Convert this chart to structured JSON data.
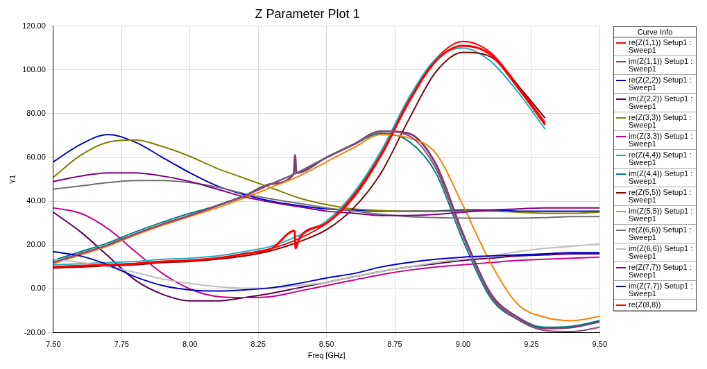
{
  "chart_data": {
    "type": "line",
    "title": "Z Parameter Plot 1",
    "xlabel": "Freq [GHz]",
    "ylabel": "Y1",
    "legend_title": "Curve Info",
    "legend": "right",
    "grid": true,
    "marker": "none",
    "line_style": "solid",
    "x": [
      7.5,
      7.6,
      7.7,
      7.8,
      7.9,
      8.0,
      8.1,
      8.2,
      8.3,
      8.4,
      8.5,
      8.6,
      8.7,
      8.8,
      8.9,
      9.0,
      9.1,
      9.2,
      9.3,
      9.4,
      9.5
    ],
    "xlim": [
      7.5,
      9.5
    ],
    "xticks": [
      {
        "value": 7.5,
        "label": "7.50"
      },
      {
        "value": 7.75,
        "label": "7.75"
      },
      {
        "value": 8,
        "label": "8.00"
      },
      {
        "value": 8.25,
        "label": "8.25"
      },
      {
        "value": 8.5,
        "label": "8.50"
      },
      {
        "value": 8.75,
        "label": "8.75"
      },
      {
        "value": 9,
        "label": "9.00"
      },
      {
        "value": 9.25,
        "label": "9.25"
      },
      {
        "value": 9.5,
        "label": "9.50"
      }
    ],
    "ylim": [
      -20,
      120
    ],
    "yticks": [
      {
        "value": -20,
        "label": "-20.00"
      },
      {
        "value": 0,
        "label": "0.00"
      },
      {
        "value": 20,
        "label": "20.00"
      },
      {
        "value": 40,
        "label": "40.00"
      },
      {
        "value": 60,
        "label": "60.00"
      },
      {
        "value": 80,
        "label": "80.00"
      },
      {
        "value": 100,
        "label": "100.00"
      },
      {
        "value": 120,
        "label": "120.00"
      }
    ],
    "series": [
      {
        "name": "re(Z(1,1)) Setup1 : Sweep1",
        "color": "#ff0000",
        "values": [
          10,
          10.5,
          11,
          11.5,
          12.5,
          13,
          14,
          16,
          18.5,
          23,
          30,
          43,
          62,
          86,
          105,
          113,
          108,
          93,
          76,
          null,
          null
        ]
      },
      {
        "name": "im(Z(1,1)) Setup1 : Sweep1",
        "color": "#7f3f6f",
        "x": [
          7.5,
          7.6,
          7.7,
          7.8,
          7.9,
          8.0,
          8.1,
          8.2,
          8.3,
          8.38,
          8.385,
          8.39,
          8.5,
          8.6,
          8.7,
          8.8,
          8.9,
          9.0,
          9.1,
          9.2,
          9.3,
          9.4,
          9.5
        ],
        "values": [
          12,
          16,
          20,
          25,
          29.5,
          33.5,
          38,
          42.5,
          48,
          52.5,
          61,
          53,
          60,
          66,
          72,
          71,
          57,
          25,
          -2,
          -13,
          -18,
          -17.5,
          -15
        ]
      },
      {
        "name": "re(Z(2,2)) Setup1 : Sweep1",
        "color": "#0000cc",
        "values": [
          58,
          66,
          70.5,
          67,
          60,
          53,
          47,
          43,
          40,
          38,
          36.5,
          36,
          35.5,
          35.5,
          35.5,
          36,
          36,
          35.5,
          35.5,
          35.5,
          35.5
        ]
      },
      {
        "name": "im(Z(2,2)) Setup1 : Sweep1",
        "color": "#5a0050",
        "values": [
          35,
          26,
          15,
          4,
          -2.5,
          -5.5,
          -5.5,
          -4,
          -2,
          0.5,
          3,
          5.5,
          8,
          10,
          11.5,
          13,
          14,
          15,
          15.5,
          16,
          16
        ]
      },
      {
        "name": "re(Z(3,3)) Setup1 : Sweep1",
        "color": "#808000",
        "values": [
          51,
          61,
          67,
          68,
          65,
          60.5,
          55,
          50.5,
          46,
          41.5,
          38.5,
          36.5,
          35.8,
          35.5,
          35.5,
          35.5,
          35.5,
          35,
          34.5,
          34.5,
          35
        ]
      },
      {
        "name": "im(Z(3,3)) Setup1 : Sweep1",
        "color": "#cc0088",
        "values": [
          37,
          34.5,
          27.5,
          17,
          7,
          0,
          -3.5,
          -4,
          -3.5,
          -1,
          1.5,
          4,
          6.5,
          8.5,
          10,
          11,
          12,
          13,
          13.5,
          14,
          14.5
        ]
      },
      {
        "name": "re(Z(4,4)) Setup1 : Sweep1",
        "color": "#20b0c0",
        "values": [
          11,
          11.5,
          12,
          12.5,
          13.5,
          14,
          15,
          17,
          19.5,
          24.5,
          31,
          44,
          63,
          87,
          105,
          110,
          104,
          90,
          73,
          null,
          null
        ]
      },
      {
        "name": "im(Z(4,4)) Setup1 : Sweep1",
        "color": "#008080",
        "values": [
          13,
          17,
          21,
          26,
          30.5,
          34.5,
          38,
          42.5,
          48,
          53.5,
          60,
          66,
          71,
          67.5,
          53,
          22,
          -4,
          -14,
          -17.5,
          -17,
          -14.5
        ]
      },
      {
        "name": "re(Z(5,5)) Setup1 : Sweep1",
        "color": "#800000",
        "values": [
          9.5,
          10,
          10.5,
          11,
          12,
          12.5,
          13.5,
          15,
          17.5,
          21.5,
          27,
          37,
          53,
          77,
          99,
          108,
          106,
          93,
          78,
          null,
          null
        ]
      },
      {
        "name": "im(Z(5,5)) Setup1 : Sweep1",
        "color": "#ff8000",
        "values": [
          11.5,
          15.5,
          19.5,
          24.5,
          29,
          33,
          37,
          41.5,
          46.5,
          51.5,
          58,
          64.5,
          70.5,
          69,
          62,
          38,
          12,
          -7,
          -13,
          -14.5,
          -12.5
        ]
      },
      {
        "name": "re(Z(6,6)) Setup1 : Sweep1",
        "color": "#707070",
        "values": [
          45.5,
          47,
          48.5,
          49.5,
          49.5,
          48.5,
          46.5,
          43.5,
          41,
          39,
          37,
          35.5,
          34,
          33,
          32.5,
          32.3,
          32.3,
          32.3,
          32.5,
          33,
          33
        ]
      },
      {
        "name": "im(Z(6,6)) Setup1 : Sweep1",
        "color": "#c0c0c0",
        "values": [
          13.5,
          12,
          10,
          7.5,
          4.5,
          2.5,
          1,
          0.3,
          0.5,
          1.5,
          3,
          5.5,
          8,
          10,
          12,
          13.5,
          15,
          17,
          18.5,
          19.5,
          20.5
        ]
      },
      {
        "name": "re(Z(7,7)) Setup1 : Sweep1",
        "color": "#800080",
        "values": [
          49,
          51.5,
          53,
          53,
          51.5,
          49,
          45.5,
          42,
          39.5,
          37.5,
          35.5,
          34.5,
          33.5,
          33.5,
          34,
          35,
          36,
          36.5,
          37,
          37,
          37
        ]
      },
      {
        "name": "im(Z(7,7)) Setup1 : Sweep1",
        "color": "#0000cc",
        "values": [
          17,
          15,
          11,
          5.5,
          1.5,
          -0.5,
          -1,
          -0.5,
          0.5,
          2.5,
          5,
          7,
          10,
          12,
          13.5,
          14.5,
          15,
          15.5,
          16,
          16.5,
          16.5
        ]
      },
      {
        "name": "re(Z(8,8))",
        "color": "#ff0000",
        "x": [
          7.5,
          7.6,
          7.7,
          7.8,
          7.9,
          8.0,
          8.1,
          8.2,
          8.3,
          8.383,
          8.387,
          8.4,
          8.5,
          8.6,
          8.7,
          8.8,
          8.9,
          9.0,
          9.1,
          9.2,
          9.3
        ],
        "values": [
          10,
          10.5,
          11,
          11.5,
          12.5,
          13,
          14,
          16,
          18.5,
          26.5,
          18.5,
          23,
          30,
          42,
          61,
          85,
          104,
          111,
          107,
          92,
          75
        ]
      },
      {
        "color": "#8a4a7a",
        "values": [
          12,
          16,
          20,
          25,
          29.5,
          33.5,
          38,
          42.5,
          48,
          53.5,
          60,
          66,
          72,
          70,
          55,
          24,
          -3,
          -14,
          -19,
          -19.5,
          -17.5
        ]
      }
    ]
  }
}
